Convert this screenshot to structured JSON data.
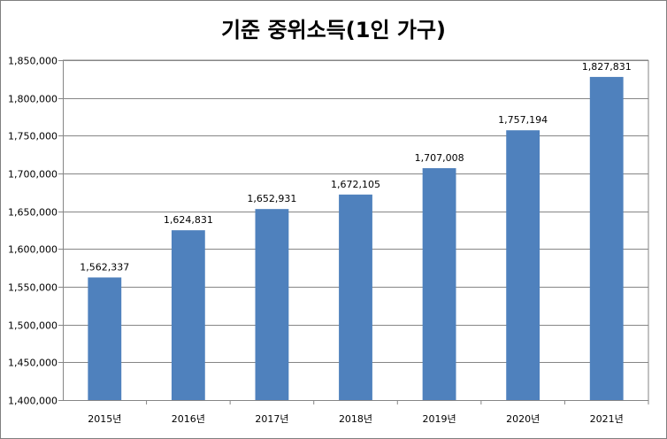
{
  "chart_data": {
    "type": "bar",
    "title": "기준 중위소득(1인 가구)",
    "xlabel": "",
    "ylabel": "",
    "categories": [
      "2015년",
      "2016년",
      "2017년",
      "2018년",
      "2019년",
      "2020년",
      "2021년"
    ],
    "values": [
      1562337,
      1624831,
      1652931,
      1672105,
      1707008,
      1757194,
      1827831
    ],
    "data_labels": [
      "1,562,337",
      "1,624,831",
      "1,652,931",
      "1,672,105",
      "1,707,008",
      "1,757,194",
      "1,827,831"
    ],
    "ylim": [
      1400000,
      1850000
    ],
    "yticks": [
      1400000,
      1450000,
      1500000,
      1550000,
      1600000,
      1650000,
      1700000,
      1750000,
      1800000,
      1850000
    ],
    "ytick_labels": [
      "1,400,000",
      "1,450,000",
      "1,500,000",
      "1,550,000",
      "1,600,000",
      "1,650,000",
      "1,700,000",
      "1,750,000",
      "1,800,000",
      "1,850,000"
    ],
    "grid": true,
    "legend": "none",
    "bar_color": "#4f81bd"
  }
}
